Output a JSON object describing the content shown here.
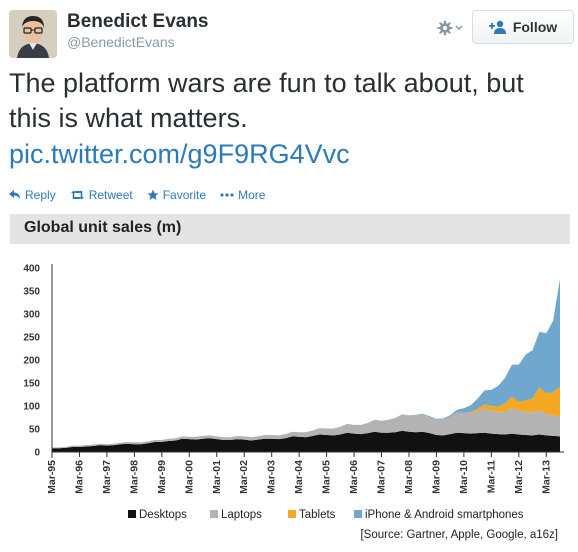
{
  "user": {
    "name": "Benedict Evans",
    "handle": "@BenedictEvans"
  },
  "follow_label": "Follow",
  "tweet": {
    "text": "The platform wars are fun to talk about, but this is what matters.",
    "link": "pic.twitter.com/g9F9RG4Vvc"
  },
  "actions": [
    {
      "label": "Reply",
      "icon": "reply-icon"
    },
    {
      "label": "Retweet",
      "icon": "retweet-icon"
    },
    {
      "label": "Favorite",
      "icon": "star-icon"
    },
    {
      "label": "More",
      "icon": "more-icon"
    }
  ],
  "colors": {
    "link": "#2b7bb9",
    "desktops": "#111111",
    "laptops": "#b3b3b3",
    "tablets": "#f4a722",
    "smartphones": "#6fa7cf"
  },
  "chart_data": {
    "type": "area",
    "stacked": true,
    "title": "Global unit sales (m)",
    "ylim": [
      0,
      400
    ],
    "yticks": [
      0,
      50,
      100,
      150,
      200,
      250,
      300,
      350,
      400
    ],
    "x_tick_labels": [
      "Mar-95",
      "Mar-96",
      "Mar-97",
      "Mar-98",
      "Mar-99",
      "Mar-00",
      "Mar-01",
      "Mar-02",
      "Mar-03",
      "Mar-04",
      "Mar-05",
      "Mar-06",
      "Mar-07",
      "Mar-08",
      "Mar-09",
      "Mar-10",
      "Mar-11",
      "Mar-12",
      "Mar-13"
    ],
    "x": [
      "Q1-95",
      "Q2-95",
      "Q3-95",
      "Q4-95",
      "Q1-96",
      "Q2-96",
      "Q3-96",
      "Q4-96",
      "Q1-97",
      "Q2-97",
      "Q3-97",
      "Q4-97",
      "Q1-98",
      "Q2-98",
      "Q3-98",
      "Q4-98",
      "Q1-99",
      "Q2-99",
      "Q3-99",
      "Q4-99",
      "Q1-00",
      "Q2-00",
      "Q3-00",
      "Q4-00",
      "Q1-01",
      "Q2-01",
      "Q3-01",
      "Q4-01",
      "Q1-02",
      "Q2-02",
      "Q3-02",
      "Q4-02",
      "Q1-03",
      "Q2-03",
      "Q3-03",
      "Q4-03",
      "Q1-04",
      "Q2-04",
      "Q3-04",
      "Q4-04",
      "Q1-05",
      "Q2-05",
      "Q3-05",
      "Q4-05",
      "Q1-06",
      "Q2-06",
      "Q3-06",
      "Q4-06",
      "Q1-07",
      "Q2-07",
      "Q3-07",
      "Q4-07",
      "Q1-08",
      "Q2-08",
      "Q3-08",
      "Q4-08",
      "Q1-09",
      "Q2-09",
      "Q3-09",
      "Q4-09",
      "Q1-10",
      "Q2-10",
      "Q3-10",
      "Q4-10",
      "Q1-11",
      "Q2-11",
      "Q3-11",
      "Q4-11",
      "Q1-12",
      "Q2-12",
      "Q3-12",
      "Q4-12",
      "Q1-13",
      "Q2-13",
      "Q3-13"
    ],
    "series": [
      {
        "name": "Desktops",
        "values": [
          8,
          8,
          9,
          11,
          11,
          12,
          13,
          15,
          14,
          15,
          17,
          18,
          17,
          17,
          19,
          22,
          22,
          24,
          25,
          29,
          28,
          27,
          29,
          30,
          28,
          26,
          26,
          28,
          27,
          25,
          27,
          29,
          29,
          28,
          30,
          34,
          33,
          32,
          35,
          38,
          37,
          36,
          38,
          42,
          40,
          39,
          41,
          44,
          42,
          42,
          43,
          46,
          44,
          43,
          44,
          41,
          37,
          36,
          39,
          42,
          41,
          40,
          41,
          42,
          40,
          39,
          38,
          40,
          38,
          37,
          36,
          38,
          36,
          35,
          34
        ]
      },
      {
        "name": "Laptops",
        "values": [
          2,
          2,
          2,
          3,
          3,
          3,
          3,
          3,
          3,
          3,
          3,
          4,
          4,
          4,
          4,
          4,
          4,
          5,
          5,
          5,
          5,
          6,
          6,
          6,
          6,
          6,
          6,
          7,
          7,
          7,
          7,
          8,
          8,
          8,
          9,
          10,
          10,
          11,
          12,
          14,
          14,
          15,
          17,
          19,
          19,
          20,
          22,
          26,
          26,
          28,
          31,
          36,
          36,
          37,
          38,
          35,
          33,
          35,
          38,
          44,
          44,
          45,
          48,
          52,
          50,
          48,
          50,
          55,
          52,
          50,
          50,
          53,
          47,
          45,
          43
        ]
      },
      {
        "name": "Tablets",
        "values": [
          0,
          0,
          0,
          0,
          0,
          0,
          0,
          0,
          0,
          0,
          0,
          0,
          0,
          0,
          0,
          0,
          0,
          0,
          0,
          0,
          0,
          0,
          0,
          0,
          0,
          0,
          0,
          0,
          0,
          0,
          0,
          0,
          0,
          0,
          0,
          0,
          0,
          0,
          0,
          0,
          0,
          0,
          0,
          0,
          0,
          0,
          0,
          0,
          0,
          0,
          0,
          0,
          0,
          0,
          0,
          0,
          0,
          0,
          0,
          0,
          0,
          2,
          5,
          10,
          10,
          12,
          18,
          25,
          20,
          25,
          30,
          50,
          45,
          50,
          65
        ]
      },
      {
        "name": "iPhone & Android smartphones",
        "values": [
          0,
          0,
          0,
          0,
          0,
          0,
          0,
          0,
          0,
          0,
          0,
          0,
          0,
          0,
          0,
          0,
          0,
          0,
          0,
          0,
          0,
          0,
          0,
          0,
          0,
          0,
          0,
          0,
          0,
          0,
          0,
          0,
          0,
          0,
          0,
          0,
          0,
          0,
          0,
          0,
          0,
          0,
          0,
          0,
          0,
          0,
          0,
          0,
          0,
          0,
          0,
          0,
          0,
          1,
          1,
          2,
          2,
          2,
          3,
          6,
          10,
          15,
          22,
          30,
          35,
          45,
          55,
          70,
          80,
          100,
          105,
          120,
          130,
          155,
          235
        ]
      }
    ],
    "legend_position": "bottom",
    "source": "[Source: Gartner, Apple, Google, a16z]"
  }
}
